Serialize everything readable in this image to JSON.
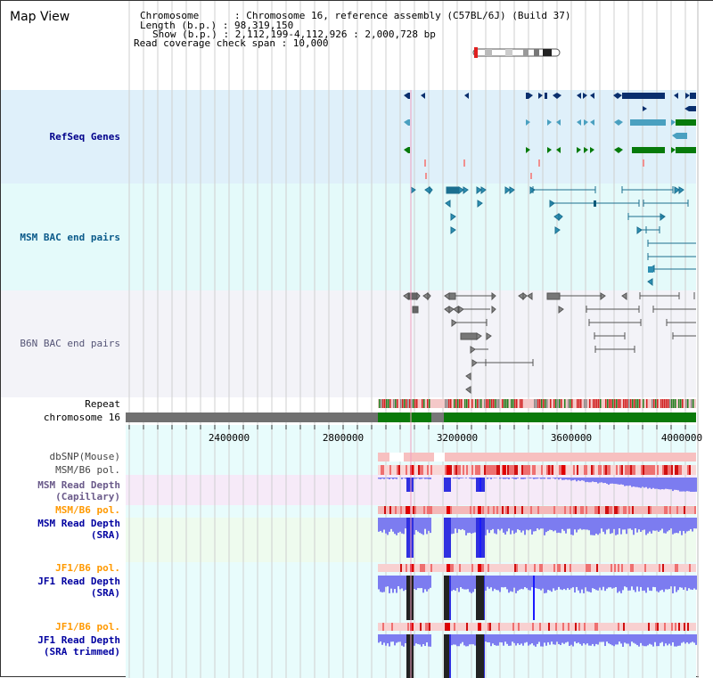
{
  "panel_title": "Map View",
  "info": {
    "chromosome_line": "Chromosome      : Chromosome 16, reference assembly (C57BL/6J) (Build 37)",
    "length_line": "Length (b.p.) : 98,319,150",
    "show_line": "Show (b.p.) : 2,112,199-4,112,926 : 2,000,728 bp",
    "coverage_line": "Read coverage check span : 10,000"
  },
  "tracks": {
    "refseq": "RefSeq Genes",
    "msm_bac": "MSM BAC end pairs",
    "b6n_bac": "B6N BAC end pairs",
    "repeat": "Repeat",
    "chromosome": "chromosome 16",
    "dbsnp": "dbSNP(Mouse)",
    "msm_b6_pol_1": "MSM/B6 pol.",
    "msm_read_depth_cap_1": "MSM Read Depth",
    "msm_read_depth_cap_2": "(Capillary)",
    "msm_b6_pol_2": "MSM/B6 pol.",
    "msm_read_depth_sra_1": "MSM Read Depth",
    "msm_read_depth_sra_2": "(SRA)",
    "jf1_b6_pol_1": "JF1/B6 pol.",
    "jf1_read_depth_sra_1": "JF1 Read Depth",
    "jf1_read_depth_sra_2": "(SRA)",
    "jf1_b6_pol_2": "JF1/B6 pol.",
    "jf1_read_depth_trim_1": "JF1 Read Depth",
    "jf1_read_depth_trim_2": "(SRA trimmed)"
  },
  "axis": {
    "range": [
      2112199,
      4112926
    ],
    "ticks": [
      "2400000",
      "2800000",
      "3200000",
      "3600000",
      "4000000"
    ]
  },
  "colors": {
    "refseq_bg": "#dff0fa",
    "msm_bac_bg": "#e4fafa",
    "b6n_bac_bg": "#f3f3f8",
    "dark_blue": "#0a2f6e",
    "teal": "#2e8fb2",
    "green": "#067a0b",
    "label_blue": "#00008b",
    "label_orange": "#ff9900",
    "depth_blue": "#2d2df0",
    "pol_red": "#e62020",
    "chr_gray": "#707070",
    "chr_green": "#0a7a0a"
  }
}
